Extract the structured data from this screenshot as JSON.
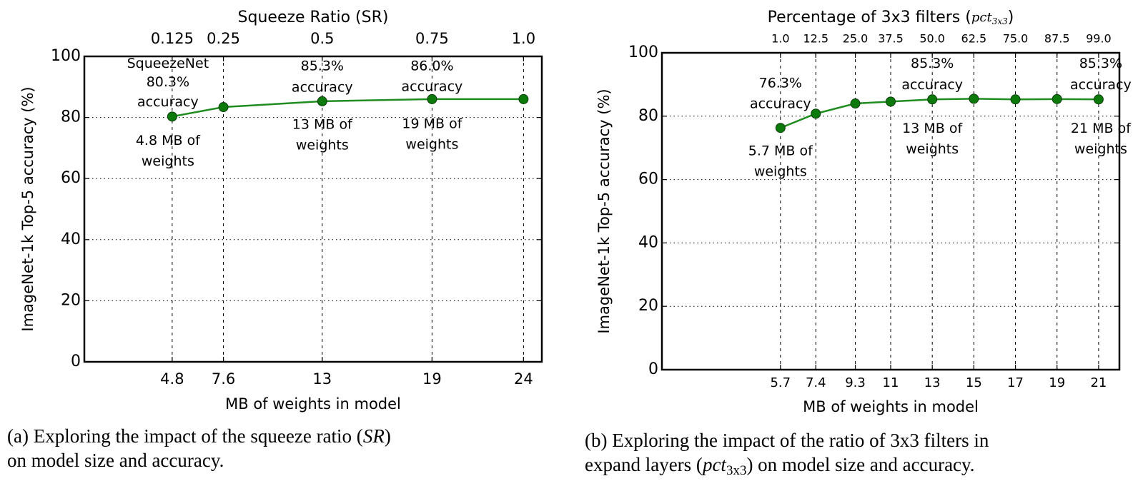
{
  "chart_data": [
    {
      "type": "line",
      "top_axis_title": "Squeeze Ratio (SR)",
      "top_tick_labels": [
        "0.125",
        "0.25",
        "0.5",
        "0.75",
        "1.0"
      ],
      "xlabel": "MB of weights in model",
      "ylabel": "ImageNet-1k Top-5 accuracy (%)",
      "x": [
        4.8,
        7.6,
        13,
        19,
        24
      ],
      "x_tick_labels": [
        "4.8",
        "7.6",
        "13",
        "19",
        "24"
      ],
      "y": [
        80.3,
        83.4,
        85.3,
        86.0,
        86.0
      ],
      "xlim": [
        0,
        25
      ],
      "ylim": [
        0,
        100
      ],
      "y_ticks": [
        0,
        20,
        40,
        60,
        80,
        100
      ],
      "grid": true,
      "line_color": "#1e8c1e",
      "marker_color": "#0b7a0b",
      "annotations": [
        {
          "point": 0,
          "above": [
            "SqueezeNet",
            "80.3%",
            "accuracy"
          ],
          "below": [
            "4.8 MB of",
            "weights"
          ]
        },
        {
          "point": 2,
          "above": [
            "85.3%",
            "accuracy"
          ],
          "below": [
            "13 MB of",
            "weights"
          ]
        },
        {
          "point": 3,
          "above": [
            "86.0%",
            "accuracy"
          ],
          "below": [
            "19 MB of",
            "weights"
          ]
        }
      ]
    },
    {
      "type": "line",
      "top_axis_title": "Percentage of 3x3 filters (",
      "top_axis_title_math": "pct",
      "top_axis_title_sub": "3x3",
      "top_axis_title_end": ")",
      "top_tick_labels": [
        "1.0",
        "12.5",
        "25.0",
        "37.5",
        "50.0",
        "62.5",
        "75.0",
        "87.5",
        "99.0"
      ],
      "xlabel": "MB of weights in model",
      "ylabel": "ImageNet-1k Top-5 accuracy (%)",
      "x": [
        5.7,
        7.4,
        9.3,
        11,
        13,
        15,
        17,
        19,
        21
      ],
      "x_tick_labels": [
        "5.7",
        "7.4",
        "9.3",
        "11",
        "13",
        "15",
        "17",
        "19",
        "21"
      ],
      "y": [
        76.3,
        80.8,
        84.0,
        84.6,
        85.3,
        85.5,
        85.3,
        85.4,
        85.3
      ],
      "xlim": [
        0,
        22
      ],
      "ylim": [
        0,
        100
      ],
      "y_ticks": [
        0,
        20,
        40,
        60,
        80,
        100
      ],
      "grid": true,
      "line_color": "#1e8c1e",
      "marker_color": "#0b7a0b",
      "annotations": [
        {
          "point": 0,
          "above": [
            "76.3%",
            "accuracy"
          ],
          "below": [
            "5.7 MB of",
            "weights"
          ]
        },
        {
          "point": 4,
          "above": [
            "85.3%",
            "accuracy"
          ],
          "below": [
            "13 MB of",
            "weights"
          ]
        },
        {
          "point": 8,
          "above": [
            "85.3%",
            "accuracy"
          ],
          "below": [
            "21 MB of",
            "weights"
          ]
        }
      ]
    }
  ],
  "captions": {
    "a": {
      "line1": "(a) Exploring the impact of the squeeze ratio (",
      "line1_math": "SR",
      "line1_end": ")",
      "line2": "on model size and accuracy."
    },
    "b": {
      "line1": "(b) Exploring the impact of the ratio of 3x3 filters in",
      "line2": "expand layers (",
      "line2_math": "pct",
      "line2_sub": "3x3",
      "line2_end": ") on model size and accuracy."
    }
  }
}
